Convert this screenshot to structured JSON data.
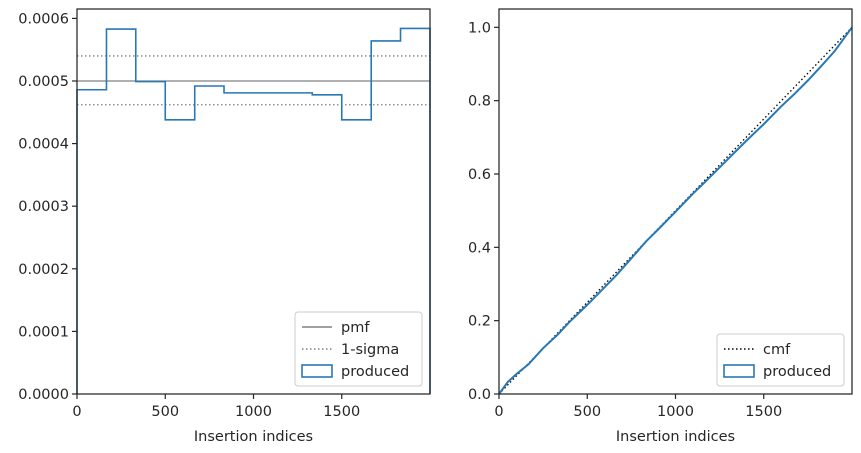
{
  "chart_data": [
    {
      "type": "line",
      "title": "",
      "xlabel": "Insertion indices",
      "ylabel": "",
      "xlim": [
        0,
        2000
      ],
      "ylim": [
        0,
        0.000615
      ],
      "xticks": [
        0,
        500,
        1000,
        1500
      ],
      "xtick_labels": [
        "0",
        "500",
        "1000",
        "1500"
      ],
      "yticks": [
        0,
        0.0001,
        0.0002,
        0.0003,
        0.0004,
        0.0005,
        0.0006
      ],
      "ytick_labels": [
        "0.0000",
        "0.0001",
        "0.0002",
        "0.0003",
        "0.0004",
        "0.0005",
        "0.0006"
      ],
      "grid": false,
      "legend_position": "bottom-right",
      "series": [
        {
          "name": "pmf",
          "kind": "hline",
          "y": 0.0005,
          "color": "#808080",
          "style": "solid"
        },
        {
          "name": "1-sigma",
          "kind": "hlines",
          "y": [
            0.00054,
            0.000462
          ],
          "color": "#808080",
          "style": "dotted"
        },
        {
          "name": "produced",
          "kind": "step-histogram",
          "color": "#2878b5",
          "bin_edges": [
            0,
            167,
            333,
            500,
            667,
            833,
            1000,
            1167,
            1333,
            1500,
            1667,
            1833,
            2000
          ],
          "values": [
            0.000486,
            0.000583,
            0.000499,
            0.000438,
            0.000492,
            0.000481,
            0.000481,
            0.000481,
            0.000478,
            0.000438,
            0.000564,
            0.000584
          ]
        }
      ]
    },
    {
      "type": "line",
      "title": "",
      "xlabel": "Insertion indices",
      "ylabel": "",
      "xlim": [
        0,
        2000
      ],
      "ylim": [
        0,
        1.05
      ],
      "xticks": [
        0,
        500,
        1000,
        1500
      ],
      "xtick_labels": [
        "0",
        "500",
        "1000",
        "1500"
      ],
      "yticks": [
        0,
        0.2,
        0.4,
        0.6,
        0.8,
        1.0
      ],
      "ytick_labels": [
        "0.0",
        "0.2",
        "0.4",
        "0.6",
        "0.8",
        "1.0"
      ],
      "grid": false,
      "legend_position": "bottom-right",
      "series": [
        {
          "name": "cmf",
          "kind": "line",
          "x": [
            0,
            2000
          ],
          "y": [
            0,
            1.0
          ],
          "color": "#000000",
          "style": "dotted"
        },
        {
          "name": "produced",
          "kind": "line",
          "color": "#2878b5",
          "x": [
            0,
            50,
            100,
            167,
            250,
            333,
            400,
            500,
            600,
            667,
            750,
            833,
            900,
            1000,
            1100,
            1167,
            1250,
            1333,
            1400,
            1500,
            1600,
            1667,
            1750,
            1833,
            1900,
            2000
          ],
          "y": [
            0,
            0.033,
            0.055,
            0.081,
            0.125,
            0.162,
            0.197,
            0.243,
            0.292,
            0.325,
            0.37,
            0.416,
            0.448,
            0.497,
            0.547,
            0.578,
            0.618,
            0.658,
            0.69,
            0.736,
            0.785,
            0.815,
            0.855,
            0.898,
            0.934,
            1.0
          ]
        }
      ]
    }
  ]
}
